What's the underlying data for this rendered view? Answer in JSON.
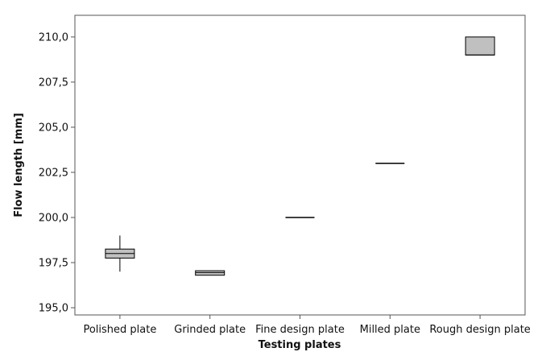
{
  "chart_data": {
    "type": "box",
    "xlabel": "Testing plates",
    "ylabel": "Flow length [mm]",
    "ylim": [
      194.6,
      211.2
    ],
    "yticks": [
      "195,0",
      "197,5",
      "200,0",
      "202,5",
      "205,0",
      "207,5",
      "210,0"
    ],
    "ytick_values": [
      195.0,
      197.5,
      200.0,
      202.5,
      205.0,
      207.5,
      210.0
    ],
    "categories": [
      "Polished plate",
      "Grinded plate",
      "Fine design plate",
      "Milled plate",
      "Rough design plate"
    ],
    "series": [
      {
        "category": "Polished plate",
        "min": 197.0,
        "q1": 197.75,
        "median": 198.0,
        "q3": 198.25,
        "max": 199.0
      },
      {
        "category": "Grinded plate",
        "min": 196.8,
        "q1": 196.8,
        "median": 196.95,
        "q3": 197.05,
        "max": 197.05
      },
      {
        "category": "Fine design plate",
        "min": 200.0,
        "q1": 200.0,
        "median": 200.0,
        "q3": 200.0,
        "max": 200.0
      },
      {
        "category": "Milled plate",
        "min": 203.0,
        "q1": 203.0,
        "median": 203.0,
        "q3": 203.0,
        "max": 203.0
      },
      {
        "category": "Rough design plate",
        "min": 209.0,
        "q1": 209.0,
        "median": 209.0,
        "q3": 210.0,
        "max": 210.0
      }
    ],
    "grid": false,
    "colors": {
      "box_fill": "#c0c0c0",
      "stroke": "#000000",
      "frame": "#555555"
    }
  }
}
